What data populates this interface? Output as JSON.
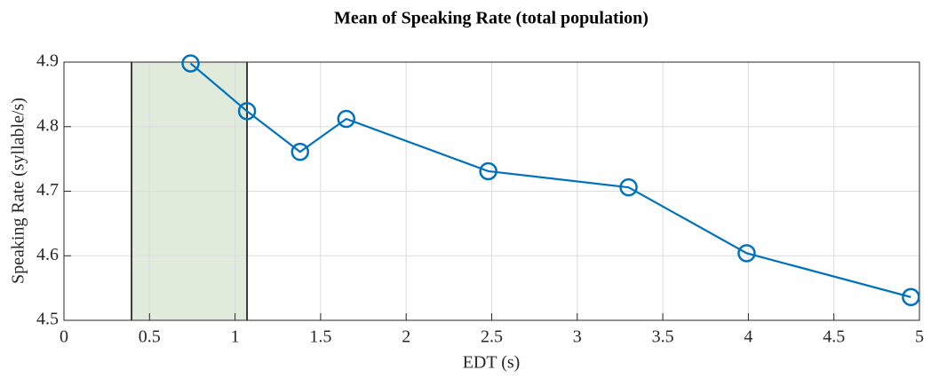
{
  "chart_data": {
    "type": "line",
    "title": "Mean of Speaking Rate (total population)",
    "x_label": "EDT (s)",
    "y_label": "Speaking Rate (syllable/s)",
    "x": [
      0.74,
      1.07,
      1.38,
      1.65,
      2.48,
      3.3,
      3.99,
      4.95
    ],
    "series": [
      {
        "name": "Mean speaking rate",
        "color": "#0072bd",
        "values": [
          4.898,
          4.824,
          4.761,
          4.812,
          4.731,
          4.706,
          4.604,
          4.536
        ]
      }
    ],
    "shaded_region": {
      "x": [
        0.395,
        1.07
      ],
      "color": "#e1ebdc"
    },
    "xlim": [
      0,
      5
    ],
    "ylim": [
      4.5,
      4.9
    ],
    "xticks": [
      0,
      0.5,
      1,
      1.5,
      2,
      2.5,
      3,
      3.5,
      4,
      4.5,
      5
    ],
    "yticks": [
      4.5,
      4.6,
      4.7,
      4.8,
      4.9
    ],
    "grid": true
  }
}
